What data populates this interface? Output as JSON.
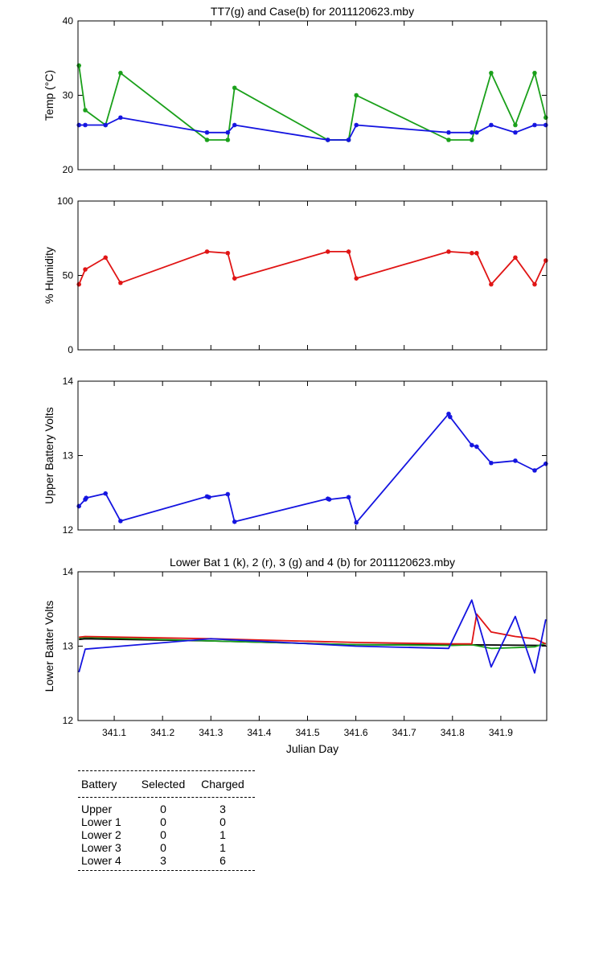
{
  "chart_data": [
    {
      "type": "line",
      "title": "TT7(g) and Case(b) for 2011120623.mby",
      "xlabel": "",
      "ylabel": "Temp  (°C)",
      "xlim": [
        341.025,
        341.995
      ],
      "ylim": [
        20,
        40
      ],
      "yticks": [
        20,
        30,
        40
      ],
      "grid": false,
      "series": [
        {
          "color": "#1aa01a",
          "x": [
            341.027,
            341.04,
            341.082,
            341.113,
            341.292,
            341.335,
            341.349,
            341.542,
            341.585,
            341.601,
            341.792,
            341.84,
            341.88,
            341.93,
            341.97,
            341.993
          ],
          "y": [
            34,
            28,
            26,
            33,
            24,
            24,
            31,
            24,
            24,
            30,
            24,
            24,
            33,
            26,
            33,
            27
          ]
        },
        {
          "color": "#1414e0",
          "x": [
            341.027,
            341.04,
            341.082,
            341.113,
            341.292,
            341.335,
            341.349,
            341.542,
            341.585,
            341.601,
            341.792,
            341.84,
            341.85,
            341.88,
            341.93,
            341.97,
            341.993
          ],
          "y": [
            26,
            26,
            26,
            27,
            25,
            25,
            26,
            24,
            24,
            26,
            25,
            25,
            25,
            26,
            25,
            26,
            26
          ]
        }
      ]
    },
    {
      "type": "line",
      "title": "",
      "xlabel": "",
      "ylabel": "% Humidity",
      "xlim": [
        341.025,
        341.995
      ],
      "ylim": [
        0,
        100
      ],
      "yticks": [
        0,
        50,
        100
      ],
      "grid": false,
      "series": [
        {
          "color": "#e01414",
          "x": [
            341.027,
            341.04,
            341.082,
            341.113,
            341.292,
            341.335,
            341.349,
            341.542,
            341.585,
            341.601,
            341.792,
            341.84,
            341.85,
            341.88,
            341.93,
            341.97,
            341.993
          ],
          "y": [
            44,
            54,
            62,
            45,
            66,
            65,
            48,
            66,
            66,
            48,
            66,
            65,
            65,
            44,
            62,
            44,
            60
          ]
        }
      ]
    },
    {
      "type": "line",
      "title": "",
      "xlabel": "",
      "ylabel": "Upper Battery Volts",
      "xlim": [
        341.025,
        341.995
      ],
      "ylim": [
        12,
        14
      ],
      "yticks": [
        12,
        13,
        14
      ],
      "grid": false,
      "series": [
        {
          "color": "#1414e0",
          "x": [
            341.027,
            341.04,
            341.042,
            341.082,
            341.113,
            341.292,
            341.296,
            341.335,
            341.349,
            341.542,
            341.545,
            341.585,
            341.601,
            341.792,
            341.795,
            341.84,
            341.85,
            341.88,
            341.93,
            341.97,
            341.993
          ],
          "y": [
            12.32,
            12.41,
            12.43,
            12.49,
            12.12,
            12.45,
            12.44,
            12.48,
            12.11,
            12.42,
            12.41,
            12.44,
            12.1,
            13.56,
            13.52,
            13.14,
            13.12,
            12.9,
            12.93,
            12.8,
            12.89
          ]
        }
      ]
    },
    {
      "type": "line",
      "title": "Lower Bat 1 (k), 2 (r), 3 (g) and 4 (b) for 2011120623.mby",
      "xlabel": "Julian Day",
      "ylabel": "Lower Batter Volts",
      "xlim": [
        341.025,
        341.995
      ],
      "ylim": [
        12,
        14
      ],
      "yticks": [
        12,
        13,
        14
      ],
      "xticks": [
        "341.1",
        "341.2",
        "341.3",
        "341.4",
        "341.5",
        "341.6",
        "341.7",
        "341.8",
        "341.9"
      ],
      "grid": false,
      "series": [
        {
          "color": "#000000",
          "x": [
            341.027,
            341.04,
            341.3,
            341.6,
            341.8,
            341.993
          ],
          "y": [
            13.09,
            13.1,
            13.07,
            13.02,
            13.02,
            13.01
          ]
        },
        {
          "color": "#1aa01a",
          "x": [
            341.027,
            341.04,
            341.3,
            341.6,
            341.8,
            341.84,
            341.88,
            341.93,
            341.97,
            341.993
          ],
          "y": [
            13.11,
            13.12,
            13.07,
            13.02,
            13.01,
            13.02,
            12.97,
            12.98,
            12.99,
            13.04
          ]
        },
        {
          "color": "#e01414",
          "x": [
            341.027,
            341.04,
            341.3,
            341.6,
            341.8,
            341.84,
            341.85,
            341.88,
            341.93,
            341.97,
            341.993
          ],
          "y": [
            13.12,
            13.13,
            13.1,
            13.05,
            13.03,
            13.03,
            13.43,
            13.19,
            13.13,
            13.1,
            13.03
          ]
        },
        {
          "color": "#1414e0",
          "x": [
            341.027,
            341.04,
            341.3,
            341.6,
            341.792,
            341.84,
            341.88,
            341.93,
            341.97,
            341.993
          ],
          "y": [
            12.65,
            12.96,
            13.1,
            13.0,
            12.97,
            13.62,
            12.72,
            13.4,
            12.64,
            13.36
          ]
        }
      ]
    }
  ],
  "battery_table": {
    "headers": [
      "Battery",
      "Selected",
      "Charged"
    ],
    "rows": [
      {
        "battery": "Upper",
        "selected": "0",
        "charged": "3"
      },
      {
        "battery": "Lower 1",
        "selected": "0",
        "charged": "0"
      },
      {
        "battery": "Lower 2",
        "selected": "0",
        "charged": "1"
      },
      {
        "battery": "Lower 3",
        "selected": "0",
        "charged": "1"
      },
      {
        "battery": "Lower 4",
        "selected": "3",
        "charged": "6"
      }
    ]
  }
}
